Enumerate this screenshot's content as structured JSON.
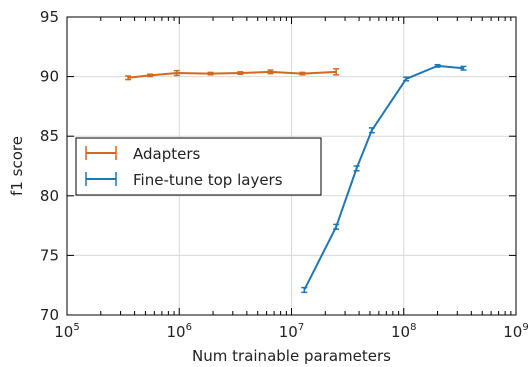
{
  "chart_data": {
    "type": "line",
    "xscale": "log",
    "xlabel": "Num trainable parameters",
    "ylabel": "f1 score",
    "xlim": [
      100000,
      1000000000
    ],
    "ylim": [
      70,
      95
    ],
    "grid": true,
    "legend_position": "center-left",
    "x_ticks": [
      {
        "value": 100000,
        "base": "10",
        "exp": "5"
      },
      {
        "value": 1000000,
        "base": "10",
        "exp": "6"
      },
      {
        "value": 10000000,
        "base": "10",
        "exp": "7"
      },
      {
        "value": 100000000,
        "base": "10",
        "exp": "8"
      },
      {
        "value": 1000000000,
        "base": "10",
        "exp": "9"
      }
    ],
    "y_ticks": [
      "70",
      "75",
      "80",
      "85",
      "90",
      "95"
    ],
    "series": [
      {
        "name": "Adapters",
        "color": "#d2691e",
        "x": [
          350000,
          550000,
          950000,
          1900000,
          3500000,
          6500000,
          12500000,
          25000000
        ],
        "y": [
          89.9,
          90.1,
          90.3,
          90.25,
          90.3,
          90.4,
          90.25,
          90.4
        ],
        "err": [
          0.15,
          0.1,
          0.2,
          0.1,
          0.1,
          0.15,
          0.1,
          0.25
        ]
      },
      {
        "name": "Fine-tune top layers",
        "color": "#1f77b4",
        "x": [
          13000000,
          25000000,
          38000000,
          52000000,
          105000000,
          200000000,
          340000000
        ],
        "y": [
          72.1,
          77.4,
          82.3,
          85.5,
          89.8,
          90.9,
          90.7
        ],
        "err": [
          0.2,
          0.2,
          0.2,
          0.2,
          0.15,
          0.1,
          0.15
        ]
      }
    ]
  }
}
